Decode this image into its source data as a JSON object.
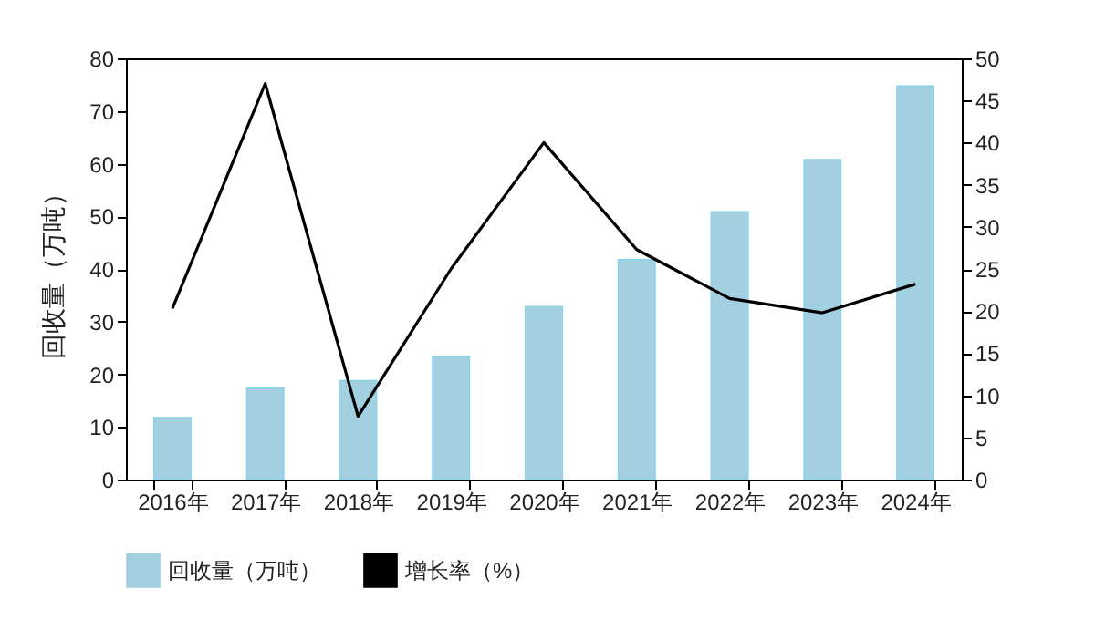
{
  "chart_data": {
    "type": "bar",
    "ylabel": "回收量（万吨）",
    "categories": [
      "2016年",
      "2017年",
      "2018年",
      "2019年",
      "2020年",
      "2021年",
      "2022年",
      "2023年",
      "2024年"
    ],
    "series": [
      {
        "name": "回收量（万吨）",
        "color": "#a3d0e0",
        "values": [
          11.8,
          17.4,
          18.8,
          23.4,
          32.9,
          41.8,
          50.9,
          60.8,
          74.8
        ]
      },
      {
        "name": "增长率（%）",
        "type": "line",
        "axis": "y2",
        "color": "#000000",
        "values": [
          20.3,
          47,
          7.5,
          25,
          40,
          27.3,
          21.5,
          19.8,
          23.2
        ]
      }
    ],
    "ylim": [
      0,
      80
    ],
    "yticks": [
      0,
      10,
      20,
      30,
      40,
      50,
      60,
      70,
      80
    ],
    "y2lim": [
      0,
      50
    ],
    "y2ticks": [
      0,
      5,
      10,
      15,
      20,
      25,
      30,
      35,
      40,
      45,
      50
    ],
    "legend": "bottom"
  }
}
